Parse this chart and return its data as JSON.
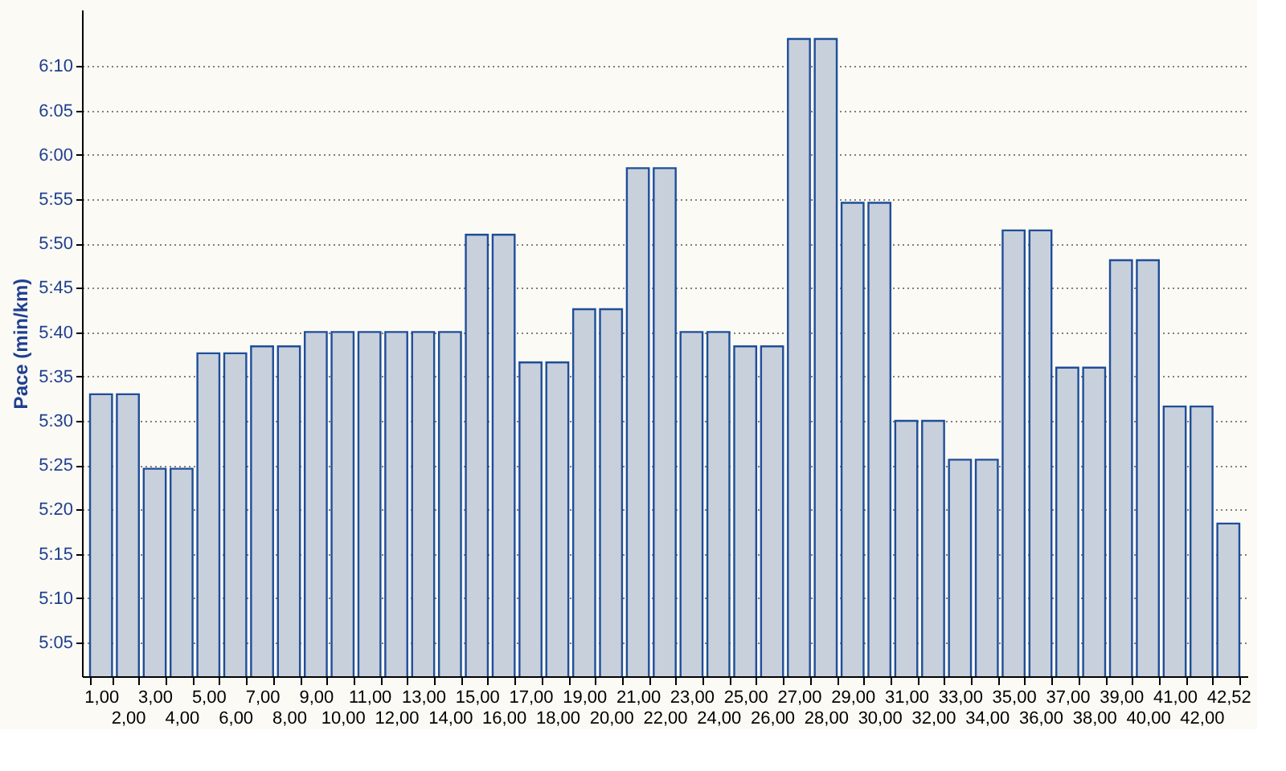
{
  "chart_data": {
    "type": "bar",
    "ylabel": "Pace (min/km)",
    "categories": [
      "1,00",
      "2,00",
      "3,00",
      "4,00",
      "5,00",
      "6,00",
      "7,00",
      "8,00",
      "9,00",
      "10,00",
      "11,00",
      "12,00",
      "13,00",
      "14,00",
      "15,00",
      "16,00",
      "17,00",
      "18,00",
      "19,00",
      "20,00",
      "21,00",
      "22,00",
      "23,00",
      "24,00",
      "25,00",
      "26,00",
      "27,00",
      "28,00",
      "29,00",
      "30,00",
      "31,00",
      "32,00",
      "33,00",
      "34,00",
      "35,00",
      "36,00",
      "37,00",
      "38,00",
      "39,00",
      "40,00",
      "41,00",
      "42,00",
      "42,52"
    ],
    "values": [
      5.55,
      5.55,
      5.41,
      5.41,
      5.627,
      5.627,
      5.64,
      5.64,
      5.667,
      5.667,
      5.667,
      5.667,
      5.667,
      5.667,
      5.85,
      5.85,
      5.61,
      5.61,
      5.71,
      5.71,
      5.975,
      5.975,
      5.667,
      5.667,
      5.64,
      5.64,
      6.218,
      6.218,
      5.91,
      5.91,
      5.5,
      5.5,
      5.427,
      5.427,
      5.858,
      5.858,
      5.6,
      5.6,
      5.802,
      5.802,
      5.527,
      5.527,
      5.307
    ],
    "color": "#c8d0dc",
    "ylim": [
      5.02,
      6.273
    ],
    "yticks": [
      {
        "value": 5.0833,
        "label": "5:05"
      },
      {
        "value": 5.1667,
        "label": "5:10"
      },
      {
        "value": 5.25,
        "label": "5:15"
      },
      {
        "value": 5.3333,
        "label": "5:20"
      },
      {
        "value": 5.4167,
        "label": "5:25"
      },
      {
        "value": 5.5,
        "label": "5:30"
      },
      {
        "value": 5.5833,
        "label": "5:35"
      },
      {
        "value": 5.6667,
        "label": "5:40"
      },
      {
        "value": 5.75,
        "label": "5:45"
      },
      {
        "value": 5.8333,
        "label": "5:50"
      },
      {
        "value": 5.9167,
        "label": "5:55"
      },
      {
        "value": 6.0,
        "label": "6:00"
      },
      {
        "value": 6.0833,
        "label": "6:05"
      },
      {
        "value": 6.1667,
        "label": "6:10"
      }
    ],
    "grid": "y"
  }
}
